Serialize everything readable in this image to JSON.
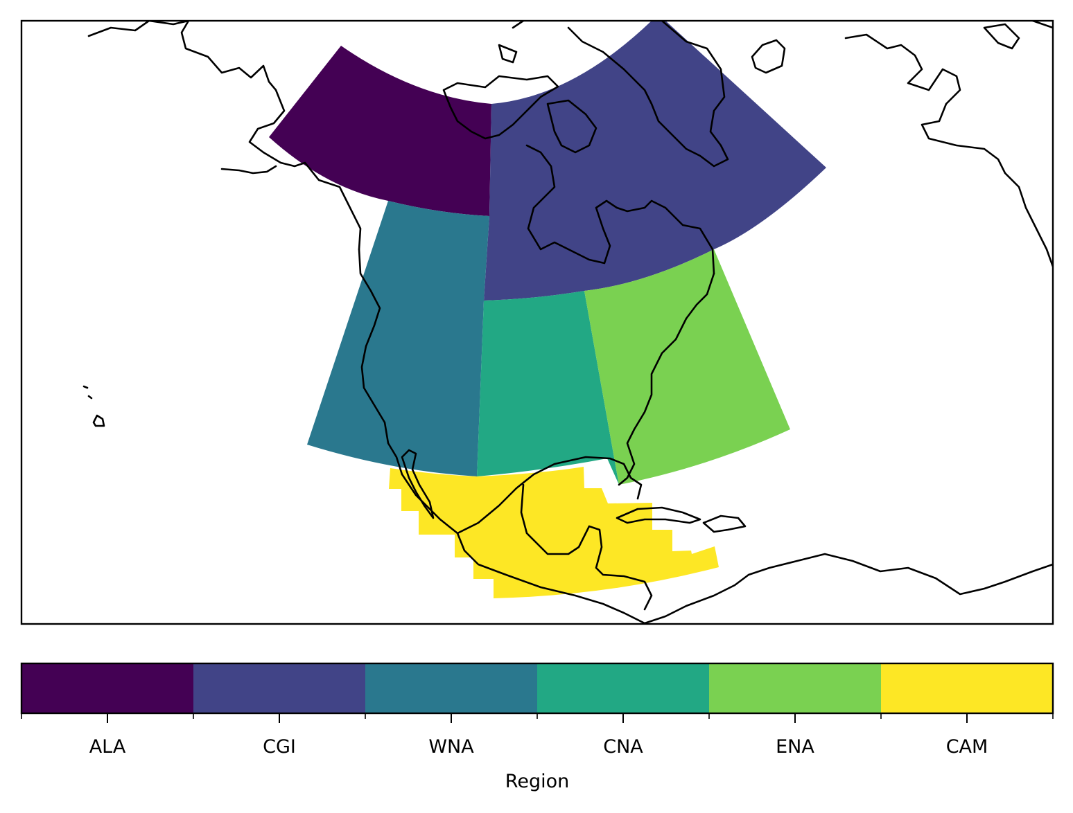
{
  "map": {
    "projection": "lambert-conformal",
    "coastlines": true,
    "region_fill_colors": {
      "ALA": "#440154",
      "CGI": "#414487",
      "WNA": "#2a788e",
      "CNA": "#22a884",
      "ENA": "#7ad151",
      "CAM": "#fde725"
    }
  },
  "colorbar": {
    "label": "Region",
    "orientation": "horizontal",
    "categories": [
      "ALA",
      "CGI",
      "WNA",
      "CNA",
      "ENA",
      "CAM"
    ],
    "colors": [
      "#440154",
      "#414487",
      "#2a788e",
      "#22a884",
      "#7ad151",
      "#fde725"
    ]
  }
}
